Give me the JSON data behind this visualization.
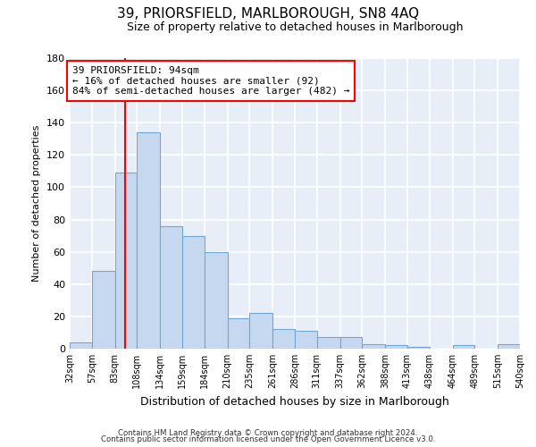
{
  "title1": "39, PRIORSFIELD, MARLBOROUGH, SN8 4AQ",
  "title2": "Size of property relative to detached houses in Marlborough",
  "xlabel": "Distribution of detached houses by size in Marlborough",
  "ylabel": "Number of detached properties",
  "bin_edges": [
    32,
    57,
    83,
    108,
    134,
    159,
    184,
    210,
    235,
    261,
    286,
    311,
    337,
    362,
    388,
    413,
    438,
    464,
    489,
    515,
    540
  ],
  "bar_heights": [
    4,
    48,
    109,
    134,
    76,
    70,
    60,
    19,
    22,
    12,
    11,
    7,
    7,
    3,
    2,
    1,
    0,
    2,
    0,
    3
  ],
  "bar_color": "#c5d8f0",
  "bar_edge_color": "#6fa8d8",
  "red_line_x": 94,
  "annotation_text": "39 PRIORSFIELD: 94sqm\n← 16% of detached houses are smaller (92)\n84% of semi-detached houses are larger (482) →",
  "annotation_box_color": "white",
  "annotation_box_edge_color": "red",
  "ylim": [
    0,
    180
  ],
  "yticks": [
    0,
    20,
    40,
    60,
    80,
    100,
    120,
    140,
    160,
    180
  ],
  "bg_color": "#e8eef8",
  "grid_color": "white",
  "footer1": "Contains HM Land Registry data © Crown copyright and database right 2024.",
  "footer2": "Contains public sector information licensed under the Open Government Licence v3.0."
}
